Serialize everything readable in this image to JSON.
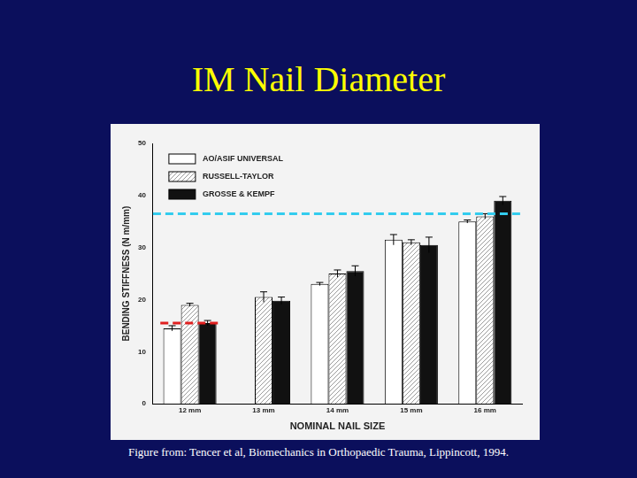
{
  "chart_data": {
    "type": "bar",
    "title": "IM Nail Diameter",
    "annotations": [
      "Figure from: Tencer et al, Biomechanics in Orthopaedic Trauma, Lippincott, 1994."
    ],
    "x_label": "NOMINAL NAIL SIZE",
    "y_label": "BENDING STIFFNESS (N m/mm)",
    "categories": [
      "12 mm",
      "13 mm",
      "14 mm",
      "15 mm",
      "16 mm"
    ],
    "series": [
      {
        "name": "AO/ASIF UNIVERSAL",
        "color": "#ffffff",
        "marker": "solid",
        "values": [
          14.5,
          null,
          23,
          31.5,
          35
        ],
        "errors": [
          0.5,
          null,
          0.3,
          1.0,
          0.3
        ]
      },
      {
        "name": "RUSSELL-TAYLOR",
        "color": "#9a9a9a",
        "marker": "hatched",
        "values": [
          19,
          20.5,
          25,
          31,
          36
        ],
        "errors": [
          0.3,
          1.0,
          0.7,
          0.5,
          0.5
        ]
      },
      {
        "name": "GROSSE & KEMPF",
        "color": "#111111",
        "marker": "solid",
        "values": [
          15.5,
          19.8,
          25.5,
          30.5,
          39
        ],
        "errors": [
          0.5,
          0.7,
          1.0,
          1.5,
          0.8
        ]
      }
    ],
    "reference_lines": [
      {
        "value": 15.5,
        "color": "#e02020",
        "line_style": "dashed",
        "category": "12 mm"
      },
      {
        "value": 36.5,
        "color": "#33ccee",
        "line_style": "dashed"
      }
    ],
    "ylim": [
      0,
      50
    ],
    "yticks": [
      0,
      10,
      20,
      30,
      40,
      50
    ],
    "grid": false,
    "legend": "upper left"
  }
}
